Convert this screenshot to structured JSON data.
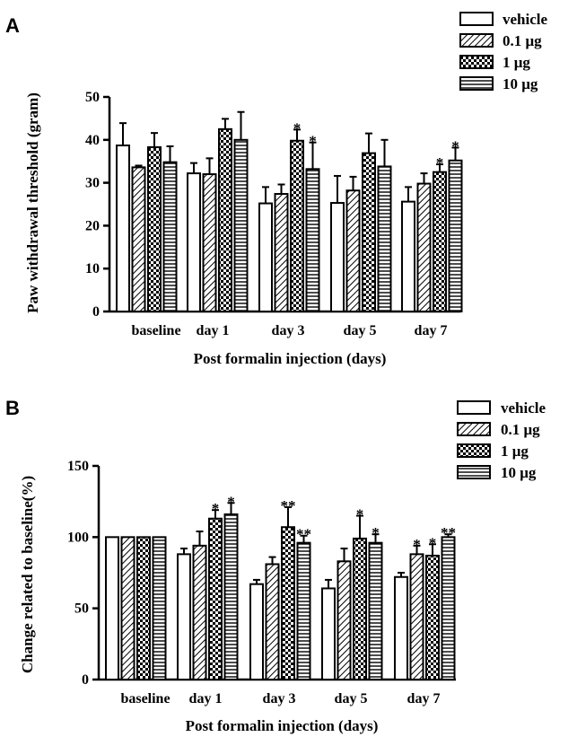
{
  "series_styles": [
    {
      "pattern": "blank"
    },
    {
      "pattern": "diag"
    },
    {
      "pattern": "checker"
    },
    {
      "pattern": "hlines"
    }
  ],
  "chart_data": [
    {
      "panel_label": "A",
      "type": "bar",
      "categories": [
        "baseline",
        "day 1",
        "day 3",
        "day 5",
        "day 7"
      ],
      "ylabel": "Paw withdrawal threshold (gram)",
      "xlabel": "Post formalin injection (days)",
      "ylim": [
        0,
        50
      ],
      "yticks": [
        0,
        10,
        20,
        30,
        40,
        50
      ],
      "legend_position": "top-right",
      "series": [
        {
          "name": "vehicle",
          "values": [
            38.7,
            32.2,
            25.2,
            25.3,
            25.6
          ],
          "errors": [
            5.2,
            2.4,
            3.8,
            6.3,
            3.4
          ],
          "marks": [
            "",
            "",
            "",
            "",
            ""
          ]
        },
        {
          "name": "0.1 μg",
          "values": [
            33.6,
            32.0,
            27.4,
            28.2,
            29.8
          ],
          "errors": [
            0.4,
            3.7,
            2.2,
            3.2,
            2.4
          ],
          "marks": [
            "",
            "",
            "",
            "",
            ""
          ]
        },
        {
          "name": "1 μg",
          "values": [
            38.3,
            42.5,
            39.8,
            36.9,
            32.5
          ],
          "errors": [
            3.3,
            2.4,
            2.6,
            4.6,
            1.8
          ],
          "marks": [
            "",
            "",
            "*",
            "",
            "*"
          ]
        },
        {
          "name": "10 μg",
          "values": [
            34.8,
            40.0,
            33.2,
            33.8,
            35.2
          ],
          "errors": [
            3.7,
            6.5,
            6.2,
            6.2,
            3.0
          ],
          "marks": [
            "",
            "",
            "*",
            "",
            "*"
          ]
        }
      ]
    },
    {
      "panel_label": "B",
      "type": "bar",
      "categories": [
        "baseline",
        "day 1",
        "day 3",
        "day 5",
        "day 7"
      ],
      "ylabel": "Change related to baseline(%)",
      "xlabel": "Post formalin injection (days)",
      "ylim": [
        0,
        150
      ],
      "yticks": [
        0,
        50,
        100,
        150
      ],
      "legend_position": "top-right",
      "series": [
        {
          "name": "vehicle",
          "values": [
            100,
            88,
            67,
            64,
            72
          ],
          "errors": [
            0,
            4,
            3,
            6,
            3
          ],
          "marks": [
            "",
            "",
            "",
            "",
            ""
          ]
        },
        {
          "name": "0.1 μg",
          "values": [
            100,
            94,
            81,
            83,
            88
          ],
          "errors": [
            0,
            10,
            5,
            9,
            6
          ],
          "marks": [
            "",
            "",
            "",
            "",
            "*"
          ]
        },
        {
          "name": "1 μg",
          "values": [
            100,
            113,
            107,
            99,
            87
          ],
          "errors": [
            0,
            6,
            14,
            16,
            8
          ],
          "marks": [
            "",
            "*",
            "**",
            "*",
            "*"
          ]
        },
        {
          "name": "10 μg",
          "values": [
            100,
            116,
            96,
            96,
            100
          ],
          "errors": [
            0,
            8,
            5,
            6,
            2
          ],
          "marks": [
            "",
            "*",
            "**",
            "*",
            "**"
          ]
        }
      ]
    }
  ]
}
